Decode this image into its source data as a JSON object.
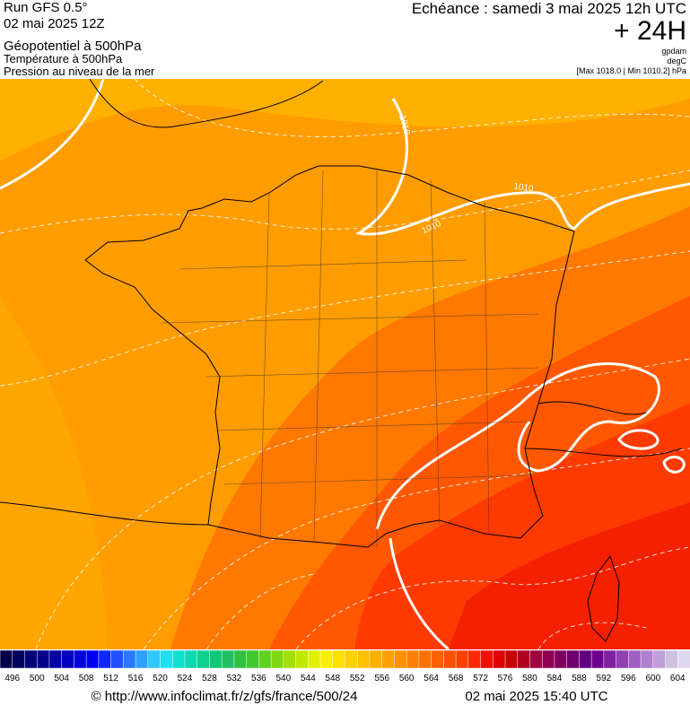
{
  "header": {
    "run": "Run GFS 0.5°",
    "date": "02 mai 2025 12Z",
    "layers": [
      "Géopotentiel à 500hPa",
      "Température à 500hPa",
      "Pression au niveau de la mer"
    ],
    "echeance": "Echéance : samedi 3 mai 2025 12h UTC",
    "lead": "+ 24H",
    "units": [
      "gpdam",
      "degC",
      "[Max 1018.0 | Min 1010.2] hPa"
    ]
  },
  "map": {
    "isobar_labels": [
      "1010",
      "1010",
      "1010"
    ]
  },
  "colorbar": {
    "labels": [
      496,
      500,
      504,
      508,
      512,
      516,
      520,
      524,
      528,
      532,
      536,
      540,
      544,
      548,
      552,
      556,
      560,
      564,
      568,
      572,
      576,
      580,
      584,
      588,
      592,
      596,
      600,
      604
    ],
    "colors": [
      "#00004a",
      "#000060",
      "#000078",
      "#00008c",
      "#0000a5",
      "#0000c0",
      "#0000dc",
      "#0000f5",
      "#1028ff",
      "#2050ff",
      "#2878ff",
      "#30a0ff",
      "#30c8ff",
      "#20e0f0",
      "#10e0d0",
      "#10d8b0",
      "#10d090",
      "#10c878",
      "#20c060",
      "#30c040",
      "#40c830",
      "#60d020",
      "#80d810",
      "#a0e000",
      "#c0e800",
      "#e0f000",
      "#f8f000",
      "#ffe000",
      "#ffd000",
      "#ffc000",
      "#ffb000",
      "#ffa000",
      "#ff9000",
      "#ff8000",
      "#ff7000",
      "#ff6000",
      "#ff5000",
      "#ff4000",
      "#ff2800",
      "#f01000",
      "#e00000",
      "#c80000",
      "#b00020",
      "#a00040",
      "#900050",
      "#800060",
      "#700070",
      "#600080",
      "#700090",
      "#8020a0",
      "#9040b0",
      "#a060c0",
      "#b080d0",
      "#c0a0d8",
      "#d0c0e0",
      "#e0d8ec"
    ]
  },
  "footer": {
    "url": "© http://www.infoclimat.fr/z/gfs/france/500/24",
    "timestamp": "02 mai 2025 15:40 UTC"
  }
}
